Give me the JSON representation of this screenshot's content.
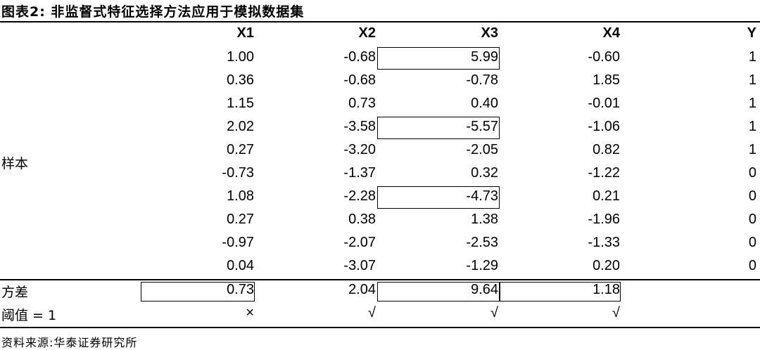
{
  "title": "图表2:  非监督式特征选择方法应用于模拟数据集",
  "columns": [
    "X1",
    "X2",
    "X3",
    "X4",
    "Y"
  ],
  "sample_label": "样本",
  "rows": [
    [
      "1.00",
      "-0.68",
      "5.99",
      "-0.60",
      "1"
    ],
    [
      "0.36",
      "-0.68",
      "-0.78",
      "1.85",
      "1"
    ],
    [
      "1.15",
      "0.73",
      "0.40",
      "-0.01",
      "1"
    ],
    [
      "2.02",
      "-3.58",
      "-5.57",
      "-1.06",
      "1"
    ],
    [
      "0.27",
      "-3.20",
      "-2.05",
      "0.82",
      "1"
    ],
    [
      "-0.73",
      "-1.37",
      "0.32",
      "-1.22",
      "0"
    ],
    [
      "1.08",
      "-2.28",
      "-4.73",
      "0.21",
      "0"
    ],
    [
      "0.27",
      "0.38",
      "1.38",
      "-1.96",
      "0"
    ],
    [
      "-0.97",
      "-2.07",
      "-2.53",
      "-1.33",
      "0"
    ],
    [
      "0.04",
      "-3.07",
      "-1.29",
      "0.20",
      "0"
    ]
  ],
  "variance": {
    "label": "方差",
    "values": [
      "0.73",
      "2.04",
      "9.64",
      "1.18"
    ]
  },
  "threshold": {
    "label": "阈值 = 1",
    "marks": [
      "×",
      "√",
      "√",
      "√"
    ]
  },
  "source": "资料来源:华泰证券研究所"
}
